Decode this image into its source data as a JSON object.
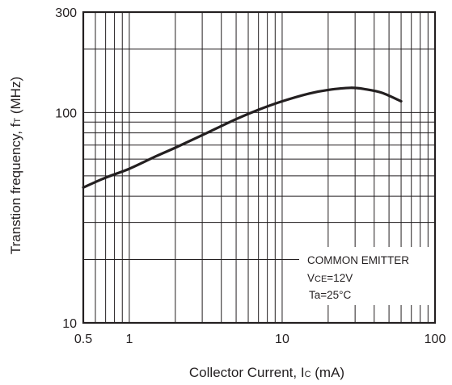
{
  "chart_data": {
    "type": "line",
    "title": "",
    "xlabel": {
      "main": "Collector Current, I",
      "sub": "C",
      "unit": " (mA)"
    },
    "ylabel": {
      "main": "Transtion frequency, f",
      "sub": "T",
      "unit": " (MHz)"
    },
    "xscale": "log",
    "yscale": "log",
    "xlim": [
      0.5,
      100
    ],
    "ylim": [
      10,
      300
    ],
    "grid": true,
    "x_ticks": [
      {
        "value": 0.5,
        "label": "0.5"
      },
      {
        "value": 1,
        "label": "1"
      },
      {
        "value": 10,
        "label": "10"
      },
      {
        "value": 100,
        "label": "100"
      }
    ],
    "y_ticks": [
      {
        "value": 10,
        "label": "10"
      },
      {
        "value": 100,
        "label": "100"
      },
      {
        "value": 300,
        "label": "300"
      }
    ],
    "series": [
      {
        "x": [
          0.5,
          0.7,
          1,
          1.5,
          2,
          3,
          5,
          7,
          10,
          15,
          20,
          28,
          35,
          45,
          60
        ],
        "y": [
          44,
          49,
          54,
          62,
          68,
          78,
          93,
          103,
          113,
          123,
          128,
          131,
          129,
          124,
          113
        ]
      }
    ],
    "annotation": {
      "line1": "COMMON EMITTER",
      "line2_prefix": "V",
      "line2_sub": "CE",
      "line2_suffix": "=12V",
      "line3": "Ta=25°C"
    }
  }
}
